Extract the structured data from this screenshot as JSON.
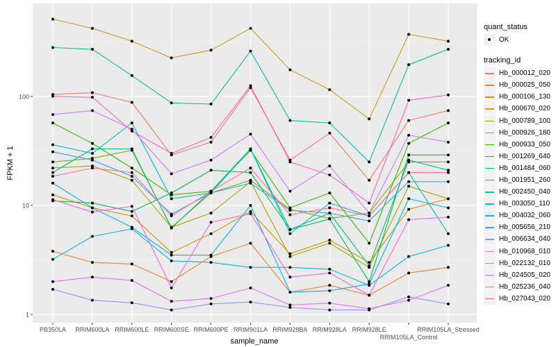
{
  "chart_data": {
    "type": "line",
    "xlabel": "sample_name",
    "ylabel": "FPKM + 1",
    "y_scale": "log10",
    "ylim": [
      0.84,
      710
    ],
    "y_ticks": [
      1,
      10,
      100
    ],
    "y_tick_labels": [
      "1",
      "10",
      "100"
    ],
    "grid": true,
    "legend_position": "right",
    "categories": [
      "PB350LA",
      "RRIM600LA",
      "RRIM600LE",
      "RRIM600SE",
      "RRIM600PE",
      "RRIM901LA",
      "RRIM928BA",
      "RRIM928LA",
      "RRIM928LE",
      "RRIM105LA_Control",
      "RRIM105LA_Stressed"
    ],
    "shape_legend": {
      "title": "quant_status",
      "entries": [
        "OK"
      ]
    },
    "color_legend_title": "tracking_id",
    "series": [
      {
        "name": "Hb_000012_020",
        "color": "#F8766D",
        "values": [
          104,
          108,
          88,
          29,
          38,
          120,
          26,
          46,
          17,
          60,
          74
        ]
      },
      {
        "name": "Hb_000025_050",
        "color": "#EA8331",
        "values": [
          3.8,
          3.0,
          2.9,
          2.0,
          3.4,
          4.5,
          1.6,
          1.85,
          1.5,
          2.4,
          2.7
        ]
      },
      {
        "name": "Hb_000106_130",
        "color": "#D89000",
        "values": [
          12.5,
          9.5,
          8,
          3.7,
          5.5,
          8.8,
          3.6,
          4.8,
          3.0,
          9.2,
          11.5
        ]
      },
      {
        "name": "Hb_000670_020",
        "color": "#C89B1A",
        "values": [
          510,
          420,
          320,
          225,
          265,
          420,
          175,
          115,
          62,
          370,
          320
        ]
      },
      {
        "name": "Hb_000789_100",
        "color": "#A3A500",
        "values": [
          22,
          23,
          17,
          6.3,
          8.5,
          16.5,
          3.4,
          4.5,
          2.7,
          15,
          11.5
        ]
      },
      {
        "name": "Hb_000926_180",
        "color": "#7CAE00",
        "values": [
          25,
          27,
          32,
          6.3,
          13,
          17,
          9.2,
          7.6,
          8.5,
          25,
          25
        ]
      },
      {
        "name": "Hb_000933_050",
        "color": "#39B600",
        "values": [
          57,
          37,
          22,
          12.5,
          13.5,
          32,
          9.5,
          13,
          4.5,
          37,
          57
        ]
      },
      {
        "name": "Hb_001269_640",
        "color": "#00BB4E",
        "values": [
          11,
          10.5,
          8.8,
          13,
          21,
          20,
          6,
          7.5,
          2.0,
          29,
          29
        ]
      },
      {
        "name": "Hb_001484_060",
        "color": "#00BF7D",
        "values": [
          20,
          33,
          33,
          6.2,
          13.5,
          33,
          6,
          8.5,
          2.8,
          26,
          21
        ]
      },
      {
        "name": "Hb_001951_260",
        "color": "#00C1A3",
        "values": [
          280,
          270,
          155,
          87,
          85,
          260,
          60,
          57,
          25,
          195,
          270
        ]
      },
      {
        "name": "Hb_002450_040",
        "color": "#00BFC4",
        "values": [
          36,
          30,
          57,
          11.5,
          13,
          33,
          5.5,
          10.5,
          8,
          20,
          5.5
        ]
      },
      {
        "name": "Hb_003050_110",
        "color": "#00BAE0",
        "values": [
          3.2,
          5.2,
          6.1,
          3.1,
          3,
          2.7,
          2.7,
          2.6,
          1.85,
          3.4,
          4.3
        ]
      },
      {
        "name": "Hb_004032_060",
        "color": "#00B0F6",
        "values": [
          16,
          9.5,
          6.3,
          3.5,
          3.5,
          10,
          1.6,
          1.65,
          1.9,
          11.5,
          9.5
        ]
      },
      {
        "name": "Hb_005656_210",
        "color": "#35A2FF",
        "values": [
          31,
          26,
          18.5,
          8.3,
          13,
          16,
          9,
          8.5,
          7.2,
          16.5,
          16.5
        ]
      },
      {
        "name": "Hb_006634_040",
        "color": "#9590FF",
        "values": [
          1.7,
          1.35,
          1.28,
          1.1,
          1.25,
          1.3,
          1.16,
          1.1,
          1.1,
          1.45,
          1.25
        ]
      },
      {
        "name": "Hb_010968_010",
        "color": "#C77CFF",
        "values": [
          68,
          74,
          50,
          19.5,
          26,
          45,
          13.5,
          23,
          8.5,
          44,
          38
        ]
      },
      {
        "name": "Hb_022132_010",
        "color": "#E76BF3",
        "values": [
          2.0,
          2.2,
          2.05,
          1.32,
          1.4,
          1.75,
          1.22,
          1.27,
          1.13,
          1.35,
          1.85
        ]
      },
      {
        "name": "Hb_024505_020",
        "color": "#FA62DB",
        "values": [
          11.3,
          8.7,
          9.8,
          1.75,
          7,
          8.4,
          2.2,
          2.4,
          1.5,
          7.4,
          7.8
        ]
      },
      {
        "name": "Hb_025236_040",
        "color": "#FF62BC",
        "values": [
          100,
          98,
          48,
          30,
          42,
          125,
          25,
          19,
          10.5,
          92,
          103
        ]
      },
      {
        "name": "Hb_027043_020",
        "color": "#FF6C91",
        "values": [
          18.5,
          22,
          20,
          8,
          13.5,
          22,
          8.2,
          9.5,
          8,
          20,
          20
        ]
      }
    ]
  }
}
